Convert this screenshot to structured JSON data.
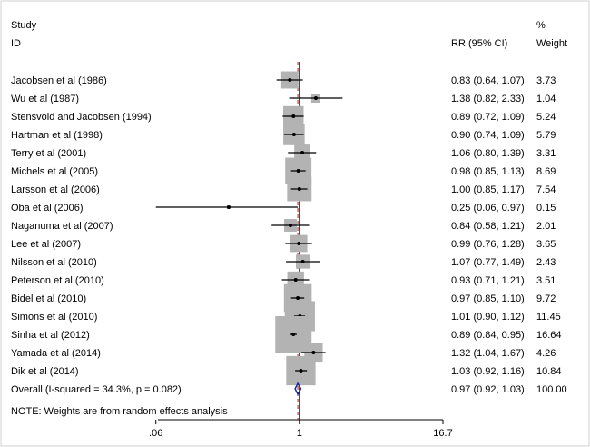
{
  "header": {
    "study_line1": "Study",
    "study_line2": "ID",
    "rr_label": "RR (95% CI)",
    "weight_line1": "%",
    "weight_line2": "Weight"
  },
  "note": "NOTE: Weights are from random effects analysis",
  "colors": {
    "box": "#b3b3b3",
    "ci_line": "#000000",
    "null_line": "#000000",
    "overall_line": "#a02020",
    "diamond": "#1a2a9a",
    "frame": "#d0d0d0"
  },
  "chart_data": {
    "type": "forest",
    "x_scale": "log",
    "xlim": [
      0.0625,
      16.7
    ],
    "x_ticks": [
      {
        "value": 0.06,
        "label": ".06"
      },
      {
        "value": 1,
        "label": "1"
      },
      {
        "value": 16.7,
        "label": "16.7"
      }
    ],
    "studies": [
      {
        "label": "Jacobsen et al  (1986)",
        "rr": 0.83,
        "lo": 0.64,
        "hi": 1.07,
        "ci_text": "0.83 (0.64, 1.07)",
        "weight": 3.73,
        "weight_text": "3.73"
      },
      {
        "label": "Wu et al (1987)",
        "rr": 1.38,
        "lo": 0.82,
        "hi": 2.33,
        "ci_text": "1.38 (0.82, 2.33)",
        "weight": 1.04,
        "weight_text": "1.04"
      },
      {
        "label": "Stensvold and Jacobsen (1994)",
        "rr": 0.89,
        "lo": 0.72,
        "hi": 1.09,
        "ci_text": "0.89 (0.72, 1.09)",
        "weight": 5.24,
        "weight_text": "5.24"
      },
      {
        "label": "Hartman et al (1998)",
        "rr": 0.9,
        "lo": 0.74,
        "hi": 1.09,
        "ci_text": "0.90 (0.74, 1.09)",
        "weight": 5.79,
        "weight_text": "5.79"
      },
      {
        "label": "Terry et al (2001)",
        "rr": 1.06,
        "lo": 0.8,
        "hi": 1.39,
        "ci_text": "1.06 (0.80, 1.39)",
        "weight": 3.31,
        "weight_text": "3.31"
      },
      {
        "label": "Michels et al (2005)",
        "rr": 0.98,
        "lo": 0.85,
        "hi": 1.13,
        "ci_text": "0.98 (0.85, 1.13)",
        "weight": 8.69,
        "weight_text": "8.69"
      },
      {
        "label": "Larsson et al (2006)",
        "rr": 1.0,
        "lo": 0.85,
        "hi": 1.17,
        "ci_text": "1.00 (0.85, 1.17)",
        "weight": 7.54,
        "weight_text": "7.54"
      },
      {
        "label": "Oba et al  (2006)",
        "rr": 0.25,
        "lo": 0.06,
        "hi": 0.97,
        "ci_text": "0.25 (0.06, 0.97)",
        "weight": 0.15,
        "weight_text": "0.15"
      },
      {
        "label": "Naganuma et al (2007)",
        "rr": 0.84,
        "lo": 0.58,
        "hi": 1.21,
        "ci_text": "0.84 (0.58, 1.21)",
        "weight": 2.01,
        "weight_text": "2.01"
      },
      {
        "label": "Lee et al  (2007)",
        "rr": 0.99,
        "lo": 0.76,
        "hi": 1.28,
        "ci_text": "0.99 (0.76, 1.28)",
        "weight": 3.65,
        "weight_text": "3.65"
      },
      {
        "label": "Nilsson et al  (2010)",
        "rr": 1.07,
        "lo": 0.77,
        "hi": 1.49,
        "ci_text": "1.07 (0.77, 1.49)",
        "weight": 2.43,
        "weight_text": "2.43"
      },
      {
        "label": "Peterson et al (2010)",
        "rr": 0.93,
        "lo": 0.71,
        "hi": 1.21,
        "ci_text": "0.93 (0.71, 1.21)",
        "weight": 3.51,
        "weight_text": "3.51"
      },
      {
        "label": "Bidel et al  (2010)",
        "rr": 0.97,
        "lo": 0.85,
        "hi": 1.1,
        "ci_text": "0.97 (0.85, 1.10)",
        "weight": 9.72,
        "weight_text": "9.72"
      },
      {
        "label": "Simons et al (2010)",
        "rr": 1.01,
        "lo": 0.9,
        "hi": 1.12,
        "ci_text": "1.01 (0.90, 1.12)",
        "weight": 11.45,
        "weight_text": "11.45"
      },
      {
        "label": "Sinha et al   (2012)",
        "rr": 0.89,
        "lo": 0.84,
        "hi": 0.95,
        "ci_text": "0.89 (0.84, 0.95)",
        "weight": 16.64,
        "weight_text": "16.64"
      },
      {
        "label": "Yamada et al (2014)",
        "rr": 1.32,
        "lo": 1.04,
        "hi": 1.67,
        "ci_text": "1.32 (1.04, 1.67)",
        "weight": 4.26,
        "weight_text": "4.26"
      },
      {
        "label": "Dik et al  (2014)",
        "rr": 1.03,
        "lo": 0.92,
        "hi": 1.16,
        "ci_text": "1.03 (0.92, 1.16)",
        "weight": 10.84,
        "weight_text": "10.84"
      }
    ],
    "overall": {
      "label": "Overall  (I-squared = 34.3%, p = 0.082)",
      "rr": 0.97,
      "lo": 0.92,
      "hi": 1.03,
      "ci_text": "0.97 (0.92, 1.03)",
      "weight_text": "100.00"
    }
  }
}
